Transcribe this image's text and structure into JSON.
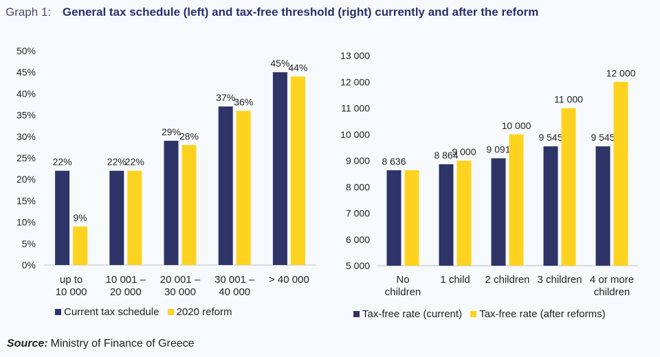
{
  "header": {
    "graph_label": "Graph 1:",
    "title": "General tax schedule (left) and tax-free threshold (right) currently and after the reform"
  },
  "colors": {
    "current": "#2e3468",
    "reform": "#fdd31f"
  },
  "chart_data": [
    {
      "type": "bar",
      "categories": [
        [
          "up to",
          "10 000"
        ],
        [
          "10 001 –",
          "20 000"
        ],
        [
          "20 001 –",
          "30 000"
        ],
        [
          "30 001 –",
          "40 000"
        ],
        [
          "> 40 000"
        ]
      ],
      "series": [
        {
          "name": "Current tax schedule",
          "values": [
            22,
            22,
            29,
            37,
            45
          ],
          "labels": [
            "22%",
            "22%",
            "29%",
            "37%",
            "45%"
          ]
        },
        {
          "name": "2020 reform",
          "values": [
            9,
            22,
            28,
            36,
            44
          ],
          "labels": [
            "9%",
            "22%",
            "28%",
            "36%",
            "44%"
          ]
        }
      ],
      "ylim": [
        0,
        50
      ],
      "yticks": [
        "0%",
        "5%",
        "10%",
        "15%",
        "20%",
        "25%",
        "30%",
        "35%",
        "40%",
        "45%",
        "50%"
      ],
      "ytick_values": [
        0,
        5,
        10,
        15,
        20,
        25,
        30,
        35,
        40,
        45,
        50
      ],
      "legend": "bottom"
    },
    {
      "type": "bar",
      "categories": [
        [
          "No",
          "children"
        ],
        [
          "1 child"
        ],
        [
          "2 children"
        ],
        [
          "3 children"
        ],
        [
          "4 or more",
          "children"
        ]
      ],
      "series": [
        {
          "name": "Tax-free rate (current)",
          "values": [
            8636,
            8864,
            9091,
            9545,
            9545
          ],
          "labels": [
            "8 636",
            "8 864",
            "9 091",
            "9 545",
            "9 545"
          ]
        },
        {
          "name": "Tax-free rate (after reforms)",
          "values": [
            8636,
            9000,
            10000,
            11000,
            12000
          ],
          "labels": [
            "",
            "9 000",
            "10 000",
            "11 000",
            "12 000"
          ]
        }
      ],
      "ylim": [
        5000,
        13000
      ],
      "yticks": [
        "5 000",
        "6 000",
        "7 000",
        "8 000",
        "9 000",
        "10 000",
        "11 000",
        "12 000",
        "13 000"
      ],
      "ytick_values": [
        5000,
        6000,
        7000,
        8000,
        9000,
        10000,
        11000,
        12000,
        13000
      ],
      "legend": "bottom"
    }
  ],
  "source": {
    "label": "Source:",
    "text": "Ministry of Finance of Greece"
  }
}
